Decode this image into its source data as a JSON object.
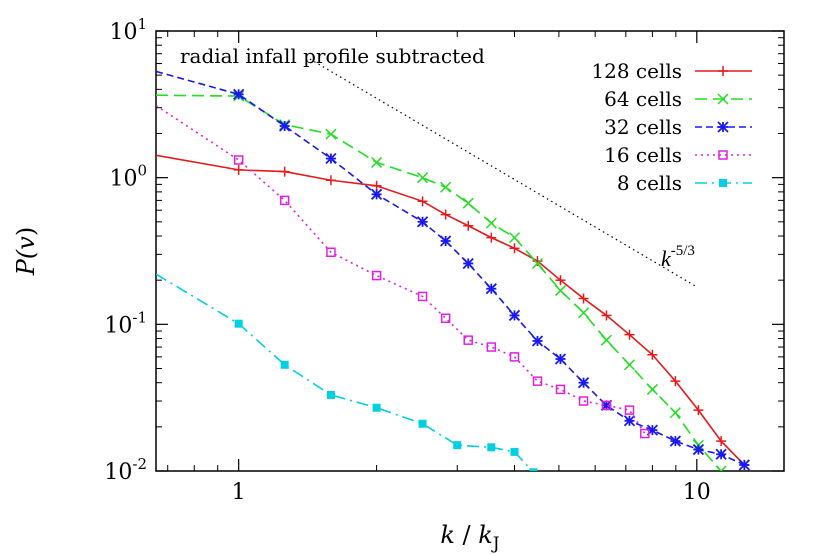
{
  "chart_data": {
    "type": "line",
    "xlabel": "k / kJ",
    "xlabel_parts": {
      "k": "k",
      "slash": " / ",
      "kj": "k",
      "sub": "J"
    },
    "ylabel": "P(v)",
    "ylabel_parts": {
      "p": "P(",
      "v": "v",
      "close": ")"
    },
    "x_scale": "log",
    "y_scale": "log",
    "xlim": [
      0.66,
      15.5
    ],
    "ylim": [
      0.01,
      10
    ],
    "x_ticks": [
      {
        "value": 1,
        "label": "1"
      },
      {
        "value": 10,
        "label": "10"
      }
    ],
    "y_ticks": [
      {
        "value": 0.01,
        "base": "10",
        "exp": "-2"
      },
      {
        "value": 0.1,
        "base": "10",
        "exp": "-1"
      },
      {
        "value": 1,
        "base": "10",
        "exp": "0"
      },
      {
        "value": 10,
        "base": "10",
        "exp": "1"
      }
    ],
    "annotation": "radial infall profile subtracted",
    "reference_line": {
      "label_base": "k",
      "label_exp": "-5/3",
      "x": [
        1.4,
        10.0
      ],
      "y": [
        6.7,
        0.18
      ],
      "color": "#000000"
    },
    "legend_position": "top-right",
    "series": [
      {
        "name": "128 cells",
        "color": "#e41a1c",
        "dash": "solid",
        "marker": "plus",
        "x": [
          0.66,
          1.0,
          1.26,
          1.59,
          2.0,
          2.52,
          2.83,
          3.17,
          3.56,
          4.0,
          4.49,
          5.04,
          5.66,
          6.35,
          7.13,
          8.0,
          8.98,
          10.08,
          11.3,
          12.7
        ],
        "y": [
          1.42,
          1.13,
          1.1,
          0.96,
          0.88,
          0.69,
          0.56,
          0.47,
          0.39,
          0.33,
          0.27,
          0.2,
          0.15,
          0.115,
          0.085,
          0.062,
          0.041,
          0.026,
          0.016,
          0.011
        ]
      },
      {
        "name": "64 cells",
        "color": "#22dd22",
        "dash": "long-dash",
        "marker": "x",
        "x": [
          0.66,
          1.0,
          1.26,
          1.59,
          2.0,
          2.52,
          2.83,
          3.17,
          3.56,
          4.0,
          4.49,
          5.04,
          5.66,
          6.35,
          7.13,
          8.0,
          8.98,
          10.08,
          11.3
        ],
        "y": [
          3.65,
          3.6,
          2.3,
          1.98,
          1.27,
          1.0,
          0.86,
          0.67,
          0.49,
          0.39,
          0.26,
          0.17,
          0.12,
          0.078,
          0.053,
          0.036,
          0.025,
          0.015,
          0.01
        ]
      },
      {
        "name": "32 cells",
        "color": "#1a1aee",
        "dash": "short-dash",
        "marker": "star",
        "x": [
          0.66,
          1.0,
          1.26,
          1.59,
          2.0,
          2.52,
          2.83,
          3.17,
          3.56,
          4.0,
          4.49,
          5.04,
          5.66,
          6.35,
          7.13,
          8.0,
          8.98,
          10.08,
          11.3,
          12.7
        ],
        "y": [
          5.3,
          3.7,
          2.25,
          1.35,
          0.77,
          0.5,
          0.37,
          0.26,
          0.175,
          0.115,
          0.077,
          0.058,
          0.04,
          0.028,
          0.022,
          0.019,
          0.016,
          0.014,
          0.013,
          0.011
        ]
      },
      {
        "name": "16 cells",
        "color": "#e020e0",
        "dash": "dotted",
        "marker": "square",
        "x": [
          0.66,
          1.0,
          1.26,
          1.59,
          2.0,
          2.52,
          2.83,
          3.17,
          3.56,
          4.0,
          4.49,
          5.04,
          5.66,
          6.35,
          7.13,
          7.7
        ],
        "y": [
          3.1,
          1.32,
          0.7,
          0.31,
          0.215,
          0.155,
          0.11,
          0.078,
          0.07,
          0.06,
          0.041,
          0.036,
          0.03,
          0.028,
          0.026,
          0.018
        ]
      },
      {
        "name": "8 cells",
        "color": "#00d0e0",
        "dash": "dash-dot",
        "marker": "filled-square",
        "x": [
          0.66,
          1.0,
          1.26,
          1.59,
          2.0,
          2.52,
          3.0,
          3.56,
          4.0,
          4.4
        ],
        "y": [
          0.22,
          0.101,
          0.053,
          0.033,
          0.027,
          0.021,
          0.015,
          0.0145,
          0.0135,
          0.0098
        ]
      }
    ]
  }
}
